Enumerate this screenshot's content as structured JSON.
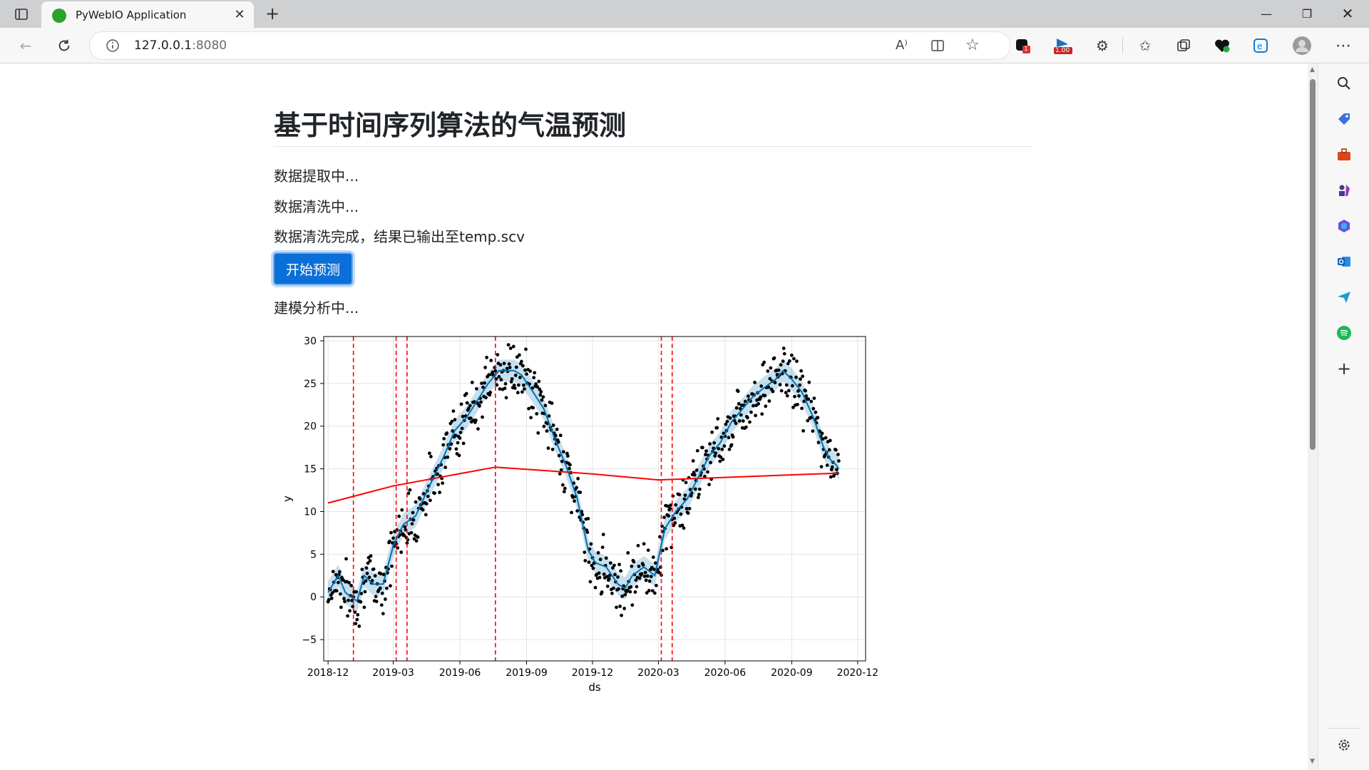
{
  "browser": {
    "tab_title": "PyWebIO Application",
    "url_host": "127.0.0.1",
    "url_port": ":8080",
    "extension_badges": {
      "badge_a": "1",
      "badge_b": "1.00"
    }
  },
  "page": {
    "title": "基于时间序列算法的气温预测",
    "status_lines": [
      "数据提取中...",
      "数据清洗中...",
      "数据清洗完成，结果已输出至temp.scv"
    ],
    "button_label": "开始预测",
    "modeling_status": "建模分析中..."
  },
  "colors": {
    "accent": "#0b6fd9",
    "observed_points": "#000000",
    "forecast_line": "#0072b2",
    "uncertainty_band": "#0072b2",
    "trend_line": "#ff0000",
    "changepoints": "#ff0000"
  },
  "chart_data": {
    "type": "line",
    "xlabel": "ds",
    "ylabel": "y",
    "ylim": [
      -7.5,
      30.5
    ],
    "xlim": [
      "2018-11-25",
      "2020-12-12"
    ],
    "x_ticks": [
      "2018-12",
      "2019-03",
      "2019-06",
      "2019-09",
      "2019-12",
      "2020-03",
      "2020-06",
      "2020-09",
      "2020-12"
    ],
    "y_ticks": [
      -5,
      0,
      5,
      10,
      15,
      20,
      25,
      30
    ],
    "grid": true,
    "series": [
      {
        "kind": "forecast",
        "x": [
          "2018-12-01",
          "2018-12-15",
          "2018-12-25",
          "2019-01-10",
          "2019-01-20",
          "2019-02-01",
          "2019-02-15",
          "2019-03-01",
          "2019-03-15",
          "2019-04-01",
          "2019-04-20",
          "2019-05-10",
          "2019-05-25",
          "2019-06-10",
          "2019-06-25",
          "2019-07-10",
          "2019-07-25",
          "2019-08-01",
          "2019-08-15",
          "2019-08-25",
          "2019-09-10",
          "2019-09-25",
          "2019-10-10",
          "2019-10-25",
          "2019-11-10",
          "2019-11-25",
          "2019-12-05",
          "2019-12-20",
          "2020-01-05",
          "2020-01-15",
          "2020-01-25",
          "2020-02-10",
          "2020-02-25",
          "2020-03-10",
          "2020-03-25",
          "2020-04-10",
          "2020-04-25",
          "2020-05-10",
          "2020-05-25",
          "2020-06-10",
          "2020-06-25",
          "2020-07-10",
          "2020-07-25",
          "2020-08-10",
          "2020-08-20",
          "2020-09-01",
          "2020-09-15",
          "2020-10-01",
          "2020-10-15",
          "2020-10-25",
          "2020-11-01",
          "2020-11-05"
        ],
        "y": [
          0.5,
          2.5,
          0.5,
          -0.5,
          2.5,
          1.5,
          1.5,
          6.0,
          8.5,
          9.5,
          13.0,
          16.5,
          19.5,
          21.0,
          23.0,
          25.0,
          26.5,
          26.5,
          26.5,
          26.0,
          24.0,
          22.0,
          18.5,
          15.5,
          11.5,
          5.5,
          4.0,
          3.5,
          1.5,
          1.0,
          2.5,
          3.5,
          2.5,
          8.0,
          10.0,
          11.5,
          14.0,
          16.5,
          18.0,
          20.5,
          22.0,
          23.5,
          24.5,
          25.5,
          26.5,
          25.5,
          24.0,
          21.0,
          17.5,
          16.0,
          15.5,
          15.0
        ]
      },
      {
        "kind": "trend",
        "x": [
          "2018-12-01",
          "2019-03-01",
          "2019-07-20",
          "2019-12-01",
          "2020-03-01",
          "2020-11-05"
        ],
        "y": [
          11.0,
          13.0,
          15.2,
          14.4,
          13.7,
          14.5
        ]
      }
    ],
    "changepoints": [
      "2019-01-05",
      "2019-03-05",
      "2019-03-20",
      "2019-07-20",
      "2020-03-05",
      "2020-03-20"
    ],
    "observed_note": "daily temperature observations as black dots around the forecast"
  }
}
